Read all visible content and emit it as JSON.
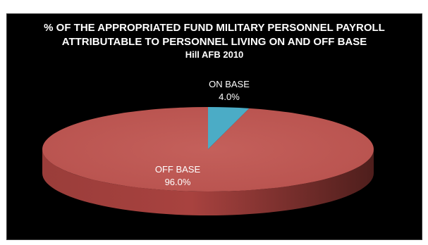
{
  "chart_data": {
    "type": "pie",
    "title": "% OF THE APPROPRIATED FUND MILITARY PERSONNEL PAYROLL ATTRIBUTABLE TO PERSONNEL LIVING ON AND OFF BASE",
    "title_lines": [
      "% OF THE APPROPRIATED FUND MILITARY PERSONNEL PAYROLL",
      "ATTRIBUTABLE TO PERSONNEL LIVING ON AND OFF BASE"
    ],
    "subtitle": "Hill AFB 2010",
    "slices": [
      {
        "label": "ON BASE",
        "value": 4.0,
        "value_label": "4.0%",
        "color": "#4bacc6"
      },
      {
        "label": "OFF BASE",
        "value": 96.0,
        "value_label": "96.0%",
        "color": "#c0504d"
      }
    ],
    "style": "3d-pie",
    "background": "#000000",
    "legend": "none"
  }
}
